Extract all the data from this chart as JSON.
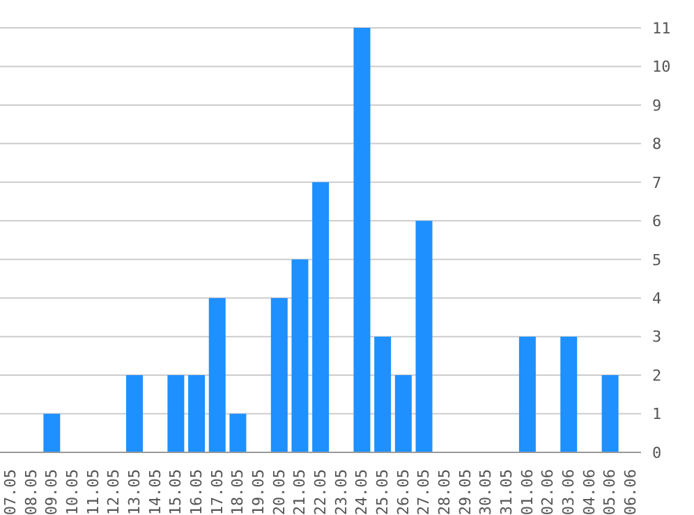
{
  "chart_data": {
    "type": "bar",
    "categories": [
      "07.05",
      "08.05",
      "09.05",
      "10.05",
      "11.05",
      "12.05",
      "13.05",
      "14.05",
      "15.05",
      "16.05",
      "17.05",
      "18.05",
      "19.05",
      "20.05",
      "21.05",
      "22.05",
      "23.05",
      "24.05",
      "25.05",
      "26.05",
      "27.05",
      "28.05",
      "29.05",
      "30.05",
      "31.05",
      "01.06",
      "02.06",
      "03.06",
      "04.06",
      "05.06",
      "06.06"
    ],
    "values": [
      0,
      0,
      1,
      0,
      0,
      0,
      2,
      0,
      2,
      2,
      4,
      1,
      0,
      4,
      5,
      7,
      0,
      11,
      3,
      2,
      6,
      0,
      0,
      0,
      0,
      3,
      0,
      3,
      0,
      2,
      0
    ],
    "color": "#1e90ff",
    "ylim": [
      0,
      11
    ],
    "yticks": [
      0,
      1,
      2,
      3,
      4,
      5,
      6,
      7,
      8,
      9,
      10,
      11
    ],
    "grid": "y"
  }
}
